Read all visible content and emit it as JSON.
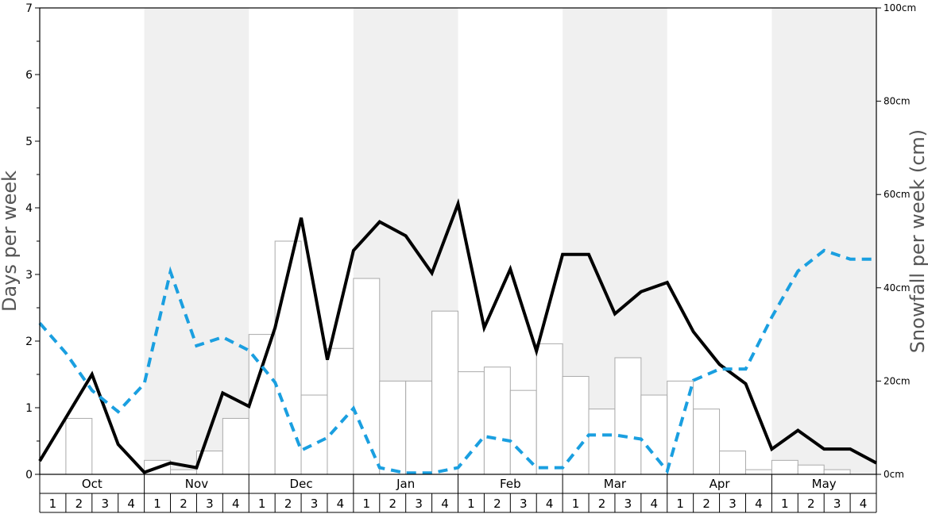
{
  "chart_data": {
    "type": "bar",
    "title": "",
    "ylabel_left": "Days per week",
    "ylabel_right": "Snowfall per week (cm)",
    "ylim_left": [
      0,
      7
    ],
    "ylim_right": [
      0,
      100
    ],
    "left_ticks": [
      "0",
      "1",
      "2",
      "3",
      "4",
      "5",
      "6",
      "7"
    ],
    "right_ticks": [
      "0cm",
      "20cm",
      "40cm",
      "60cm",
      "80cm",
      "100cm"
    ],
    "months": [
      "Oct",
      "Nov",
      "Dec",
      "Jan",
      "Feb",
      "Mar",
      "Apr",
      "May"
    ],
    "week_labels": [
      "1",
      "2",
      "3",
      "4"
    ],
    "colors": {
      "bars_stroke": "#aaaaaa",
      "bars_fill": "#ffffff",
      "solid_line": "#000000",
      "dashed_line": "#1a9fe0",
      "shade": "#f0f0f0",
      "axis_label": "#555555"
    },
    "series": [
      {
        "kind": "bar",
        "axis": "right",
        "values": [
          0,
          12,
          0,
          0,
          3,
          1,
          5,
          12,
          30,
          50,
          17,
          27,
          42,
          20,
          20,
          35,
          22,
          23,
          18,
          28,
          21,
          14,
          25,
          17,
          20,
          14,
          5,
          1,
          3,
          2,
          1,
          0
        ]
      },
      {
        "kind": "line",
        "style": "solid",
        "axis": "left",
        "values": [
          0.2,
          0.85,
          1.5,
          0.45,
          0.03,
          0.17,
          0.1,
          1.22,
          1.02,
          2.2,
          3.85,
          1.72,
          3.36,
          3.79,
          3.58,
          3.02,
          4.06,
          2.2,
          3.08,
          1.85,
          3.3,
          3.3,
          2.41,
          2.74,
          2.88,
          2.14,
          1.65,
          1.36,
          0.38,
          0.66,
          0.38,
          0.38,
          0.17
        ]
      },
      {
        "kind": "line",
        "style": "dashed",
        "axis": "left",
        "values": [
          2.27,
          1.82,
          1.26,
          0.94,
          1.36,
          3.04,
          1.93,
          2.06,
          1.86,
          1.38,
          0.36,
          0.55,
          0.99,
          0.1,
          0.02,
          0.02,
          0.1,
          0.57,
          0.5,
          0.1,
          0.1,
          0.59,
          0.59,
          0.53,
          0.05,
          1.41,
          1.58,
          1.58,
          2.36,
          3.05,
          3.36,
          3.23,
          3.23
        ]
      }
    ]
  }
}
